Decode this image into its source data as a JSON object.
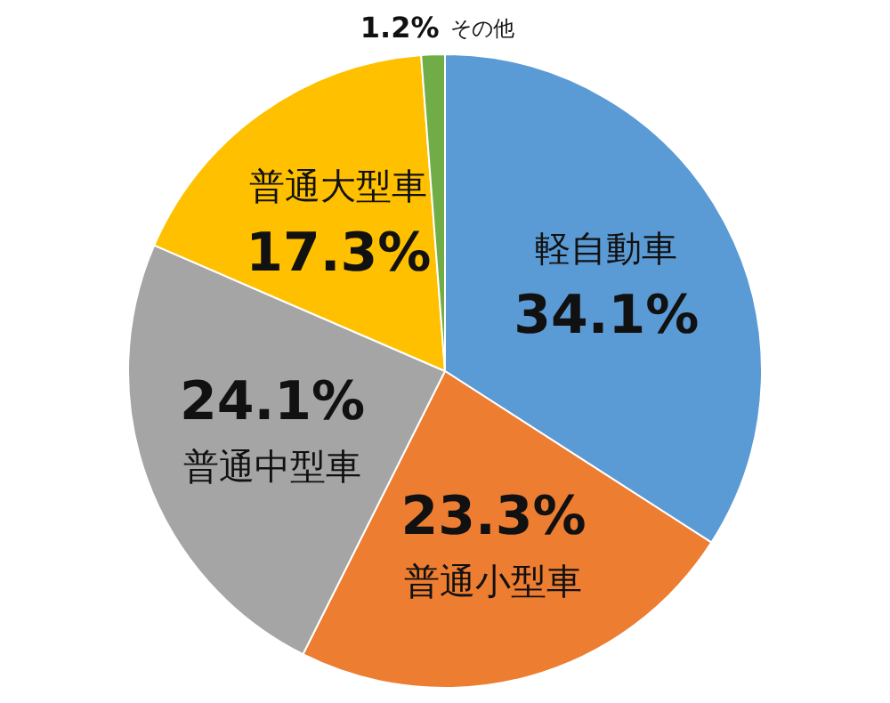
{
  "chart_data": {
    "type": "pie",
    "categories": [
      "軽自動車",
      "普通小型車",
      "普通中型車",
      "普通大型車",
      "その他"
    ],
    "values": [
      34.1,
      23.3,
      24.1,
      17.3,
      1.2
    ],
    "colors": [
      "#5b9bd5",
      "#ed7d31",
      "#a5a5a5",
      "#ffc000",
      "#70ad47"
    ],
    "value_labels": [
      "34.1%",
      "23.3%",
      "24.1%",
      "17.3%",
      "1.2%"
    ]
  }
}
